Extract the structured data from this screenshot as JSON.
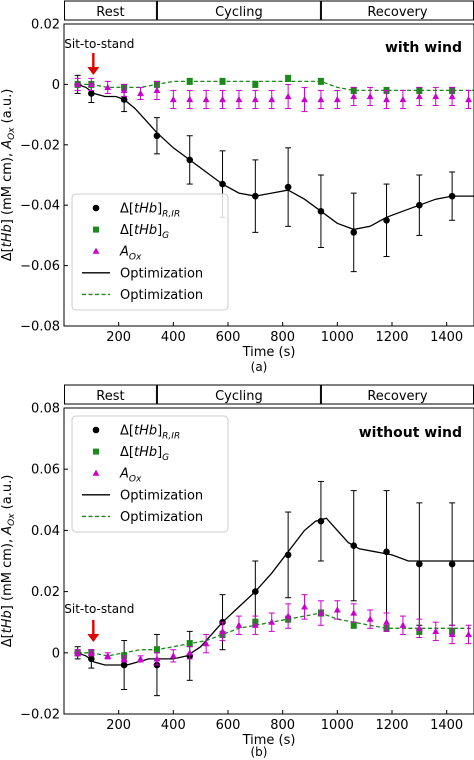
{
  "chart_data": [
    {
      "type": "line",
      "caption": "(a)",
      "annotation": "with wind",
      "event_label": "Sit-to-stand",
      "event_x": 100,
      "phases": [
        {
          "label": "Rest",
          "start": 0,
          "end": 340
        },
        {
          "label": "Cycling",
          "start": 340,
          "end": 940
        },
        {
          "label": "Recovery",
          "start": 940,
          "end": 1500
        }
      ],
      "xlabel": "Time (s)",
      "ylabel": "Δ[tHb] (mM cm), A_Ox (a.u.)",
      "xlim": [
        0,
        1500
      ],
      "ylim": [
        -0.08,
        0.02
      ],
      "xticks": [
        200,
        400,
        600,
        800,
        1000,
        1200,
        1400
      ],
      "yticks": [
        -0.08,
        -0.06,
        -0.04,
        -0.02,
        0,
        0.02
      ],
      "ytick_labels": [
        "−0.08",
        "−0.06",
        "−0.04",
        "−0.02",
        "0",
        "0.02"
      ],
      "legend": {
        "position": "lower-left",
        "entries": [
          {
            "label": "Δ[tHb]R,IR",
            "marker": "circle",
            "color": "#000000"
          },
          {
            "label": "Δ[tHb]G",
            "marker": "square",
            "color": "#1a8a1a"
          },
          {
            "label": "AOx",
            "marker": "triangle",
            "color": "#cc00cc"
          },
          {
            "label": "Optimization",
            "line": "solid",
            "color": "#000000"
          },
          {
            "label": "Optimization",
            "line": "dashed",
            "color": "#1a8a1a"
          }
        ]
      },
      "series": [
        {
          "name": "Δ[tHb]R,IR",
          "marker": "circle",
          "color": "#000000",
          "x": [
            50,
            100,
            220,
            340,
            460,
            580,
            700,
            820,
            940,
            1060,
            1180,
            1300,
            1420
          ],
          "y": [
            0,
            -0.003,
            -0.005,
            -0.017,
            -0.025,
            -0.033,
            -0.037,
            -0.034,
            -0.042,
            -0.049,
            -0.045,
            -0.04,
            -0.037
          ],
          "err": [
            0.003,
            0.003,
            0.004,
            0.006,
            0.008,
            0.011,
            0.012,
            0.013,
            0.012,
            0.013,
            0.012,
            0.01,
            0.008
          ]
        },
        {
          "name": "Δ[tHb]G",
          "marker": "square",
          "color": "#1a8a1a",
          "x": [
            50,
            100,
            220,
            340,
            460,
            580,
            700,
            820,
            940,
            1060,
            1180,
            1300,
            1420
          ],
          "y": [
            0,
            0,
            -0.001,
            0,
            0.001,
            0.001,
            0,
            0.002,
            0.001,
            -0.002,
            -0.002,
            -0.002,
            -0.002
          ],
          "err": [
            0.001,
            0.001,
            0.001,
            0.001,
            0.001,
            0.001,
            0.001,
            0.001,
            0.001,
            0.001,
            0.001,
            0.001,
            0.001
          ]
        },
        {
          "name": "AOx",
          "marker": "triangle",
          "color": "#cc00cc",
          "x": [
            50,
            100,
            160,
            220,
            280,
            340,
            400,
            460,
            520,
            580,
            640,
            700,
            760,
            820,
            880,
            940,
            1000,
            1060,
            1120,
            1180,
            1240,
            1300,
            1360,
            1420,
            1480
          ],
          "y": [
            0,
            0,
            -0.001,
            -0.002,
            -0.003,
            -0.002,
            -0.005,
            -0.005,
            -0.005,
            -0.005,
            -0.005,
            -0.005,
            -0.005,
            -0.004,
            -0.005,
            -0.005,
            -0.005,
            -0.004,
            -0.004,
            -0.005,
            -0.005,
            -0.004,
            -0.004,
            -0.004,
            -0.005
          ],
          "err": [
            0.002,
            0.002,
            0.002,
            0.002,
            0.002,
            0.003,
            0.003,
            0.003,
            0.003,
            0.003,
            0.003,
            0.003,
            0.003,
            0.004,
            0.004,
            0.003,
            0.003,
            0.003,
            0.003,
            0.003,
            0.003,
            0.003,
            0.003,
            0.003,
            0.003
          ]
        },
        {
          "name": "Optimization",
          "line": "solid",
          "color": "#000000",
          "x": [
            50,
            80,
            110,
            150,
            190,
            220,
            260,
            300,
            340,
            400,
            460,
            520,
            580,
            640,
            700,
            760,
            820,
            880,
            940,
            1000,
            1060,
            1120,
            1180,
            1240,
            1300,
            1360,
            1420,
            1500
          ],
          "y": [
            0,
            -0.001,
            -0.003,
            -0.004,
            -0.004,
            -0.005,
            -0.008,
            -0.012,
            -0.016,
            -0.021,
            -0.025,
            -0.029,
            -0.033,
            -0.036,
            -0.037,
            -0.036,
            -0.035,
            -0.038,
            -0.042,
            -0.046,
            -0.048,
            -0.047,
            -0.044,
            -0.042,
            -0.04,
            -0.038,
            -0.037,
            -0.037
          ]
        },
        {
          "name": "Optimization",
          "line": "dashed",
          "color": "#1a8a1a",
          "x": [
            50,
            100,
            160,
            220,
            280,
            340,
            400,
            460,
            520,
            580,
            640,
            700,
            760,
            820,
            880,
            940,
            1000,
            1060,
            1120,
            1180,
            1240,
            1300,
            1360,
            1420,
            1500
          ],
          "y": [
            0,
            0,
            -0.001,
            -0.001,
            -0.001,
            0,
            0.001,
            0.001,
            0.001,
            0.001,
            0.001,
            0.001,
            0.001,
            0.001,
            0.001,
            0.001,
            -0.001,
            -0.002,
            -0.002,
            -0.002,
            -0.002,
            -0.002,
            -0.002,
            -0.002,
            -0.002
          ]
        }
      ]
    },
    {
      "type": "line",
      "caption": "(b)",
      "annotation": "without wind",
      "event_label": "Sit-to-stand",
      "event_x": 100,
      "phases": [
        {
          "label": "Rest",
          "start": 0,
          "end": 340
        },
        {
          "label": "Cycling",
          "start": 340,
          "end": 940
        },
        {
          "label": "Recovery",
          "start": 940,
          "end": 1500
        }
      ],
      "xlabel": "Time (s)",
      "ylabel": "Δ[tHb] (mM cm), A_Ox (a.u.)",
      "xlim": [
        0,
        1500
      ],
      "ylim": [
        -0.02,
        0.08
      ],
      "xticks": [
        200,
        400,
        600,
        800,
        1000,
        1200,
        1400
      ],
      "yticks": [
        -0.02,
        0,
        0.02,
        0.04,
        0.06,
        0.08
      ],
      "ytick_labels": [
        "−0.02",
        "0",
        "0.02",
        "0.04",
        "0.06",
        "0.08"
      ],
      "legend": {
        "position": "upper-left",
        "entries": [
          {
            "label": "Δ[tHb]R,IR",
            "marker": "circle",
            "color": "#000000"
          },
          {
            "label": "Δ[tHb]G",
            "marker": "square",
            "color": "#1a8a1a"
          },
          {
            "label": "AOx",
            "marker": "triangle",
            "color": "#cc00cc"
          },
          {
            "label": "Optimization",
            "line": "solid",
            "color": "#000000"
          },
          {
            "label": "Optimization",
            "line": "dashed",
            "color": "#1a8a1a"
          }
        ]
      },
      "series": [
        {
          "name": "Δ[tHb]R,IR",
          "marker": "circle",
          "color": "#000000",
          "x": [
            50,
            100,
            220,
            340,
            460,
            580,
            700,
            820,
            940,
            1060,
            1180,
            1300,
            1420
          ],
          "y": [
            0,
            -0.002,
            -0.004,
            -0.004,
            -0.001,
            0.01,
            0.02,
            0.032,
            0.043,
            0.035,
            0.033,
            0.029,
            0.029
          ],
          "err": [
            0.002,
            0.003,
            0.008,
            0.01,
            0.008,
            0.009,
            0.01,
            0.014,
            0.013,
            0.018,
            0.02,
            0.02,
            0.02
          ]
        },
        {
          "name": "Δ[tHb]G",
          "marker": "square",
          "color": "#1a8a1a",
          "x": [
            50,
            100,
            220,
            340,
            460,
            580,
            700,
            820,
            940,
            1060,
            1180,
            1300,
            1420
          ],
          "y": [
            0,
            0,
            -0.001,
            0.001,
            0.003,
            0.006,
            0.01,
            0.011,
            0.013,
            0.009,
            0.008,
            0.007,
            0.007
          ],
          "err": [
            0.001,
            0.001,
            0.001,
            0.001,
            0.001,
            0.001,
            0.001,
            0.001,
            0.001,
            0.001,
            0.001,
            0.001,
            0.001
          ]
        },
        {
          "name": "AOx",
          "marker": "triangle",
          "color": "#cc00cc",
          "x": [
            50,
            100,
            160,
            220,
            280,
            340,
            400,
            460,
            520,
            580,
            640,
            700,
            760,
            820,
            880,
            940,
            1000,
            1060,
            1120,
            1180,
            1240,
            1300,
            1360,
            1420,
            1480
          ],
          "y": [
            0,
            0,
            -0.001,
            -0.002,
            -0.002,
            -0.002,
            -0.001,
            0,
            0.003,
            0.007,
            0.009,
            0.009,
            0.01,
            0.012,
            0.015,
            0.013,
            0.014,
            0.013,
            0.011,
            0.01,
            0.009,
            0.008,
            0.007,
            0.006,
            0.006
          ],
          "err": [
            0.001,
            0.001,
            0.001,
            0.001,
            0.001,
            0.002,
            0.002,
            0.002,
            0.003,
            0.003,
            0.003,
            0.003,
            0.003,
            0.004,
            0.004,
            0.004,
            0.003,
            0.003,
            0.003,
            0.003,
            0.003,
            0.003,
            0.003,
            0.003,
            0.003
          ]
        },
        {
          "name": "Optimization",
          "line": "solid",
          "color": "#000000",
          "x": [
            50,
            80,
            110,
            150,
            190,
            230,
            270,
            310,
            350,
            400,
            450,
            500,
            540,
            580,
            640,
            700,
            760,
            820,
            880,
            920,
            960,
            1000,
            1040,
            1080,
            1140,
            1200,
            1260,
            1320,
            1400,
            1500
          ],
          "y": [
            0,
            -0.001,
            -0.003,
            -0.004,
            -0.004,
            -0.004,
            -0.003,
            -0.002,
            -0.002,
            -0.002,
            -0.001,
            0.002,
            0.006,
            0.01,
            0.015,
            0.02,
            0.026,
            0.033,
            0.04,
            0.043,
            0.044,
            0.04,
            0.036,
            0.034,
            0.033,
            0.032,
            0.03,
            0.03,
            0.03,
            0.03
          ]
        },
        {
          "name": "Optimization",
          "line": "dashed",
          "color": "#1a8a1a",
          "x": [
            50,
            100,
            160,
            220,
            280,
            340,
            400,
            460,
            520,
            580,
            640,
            700,
            760,
            820,
            880,
            940,
            1000,
            1060,
            1120,
            1180,
            1240,
            1300,
            1360,
            1420,
            1500
          ],
          "y": [
            0,
            0,
            -0.001,
            0,
            0.001,
            0.001,
            0.002,
            0.003,
            0.004,
            0.006,
            0.008,
            0.009,
            0.01,
            0.011,
            0.012,
            0.013,
            0.011,
            0.01,
            0.009,
            0.008,
            0.008,
            0.008,
            0.008,
            0.008,
            0.008
          ]
        }
      ]
    }
  ]
}
